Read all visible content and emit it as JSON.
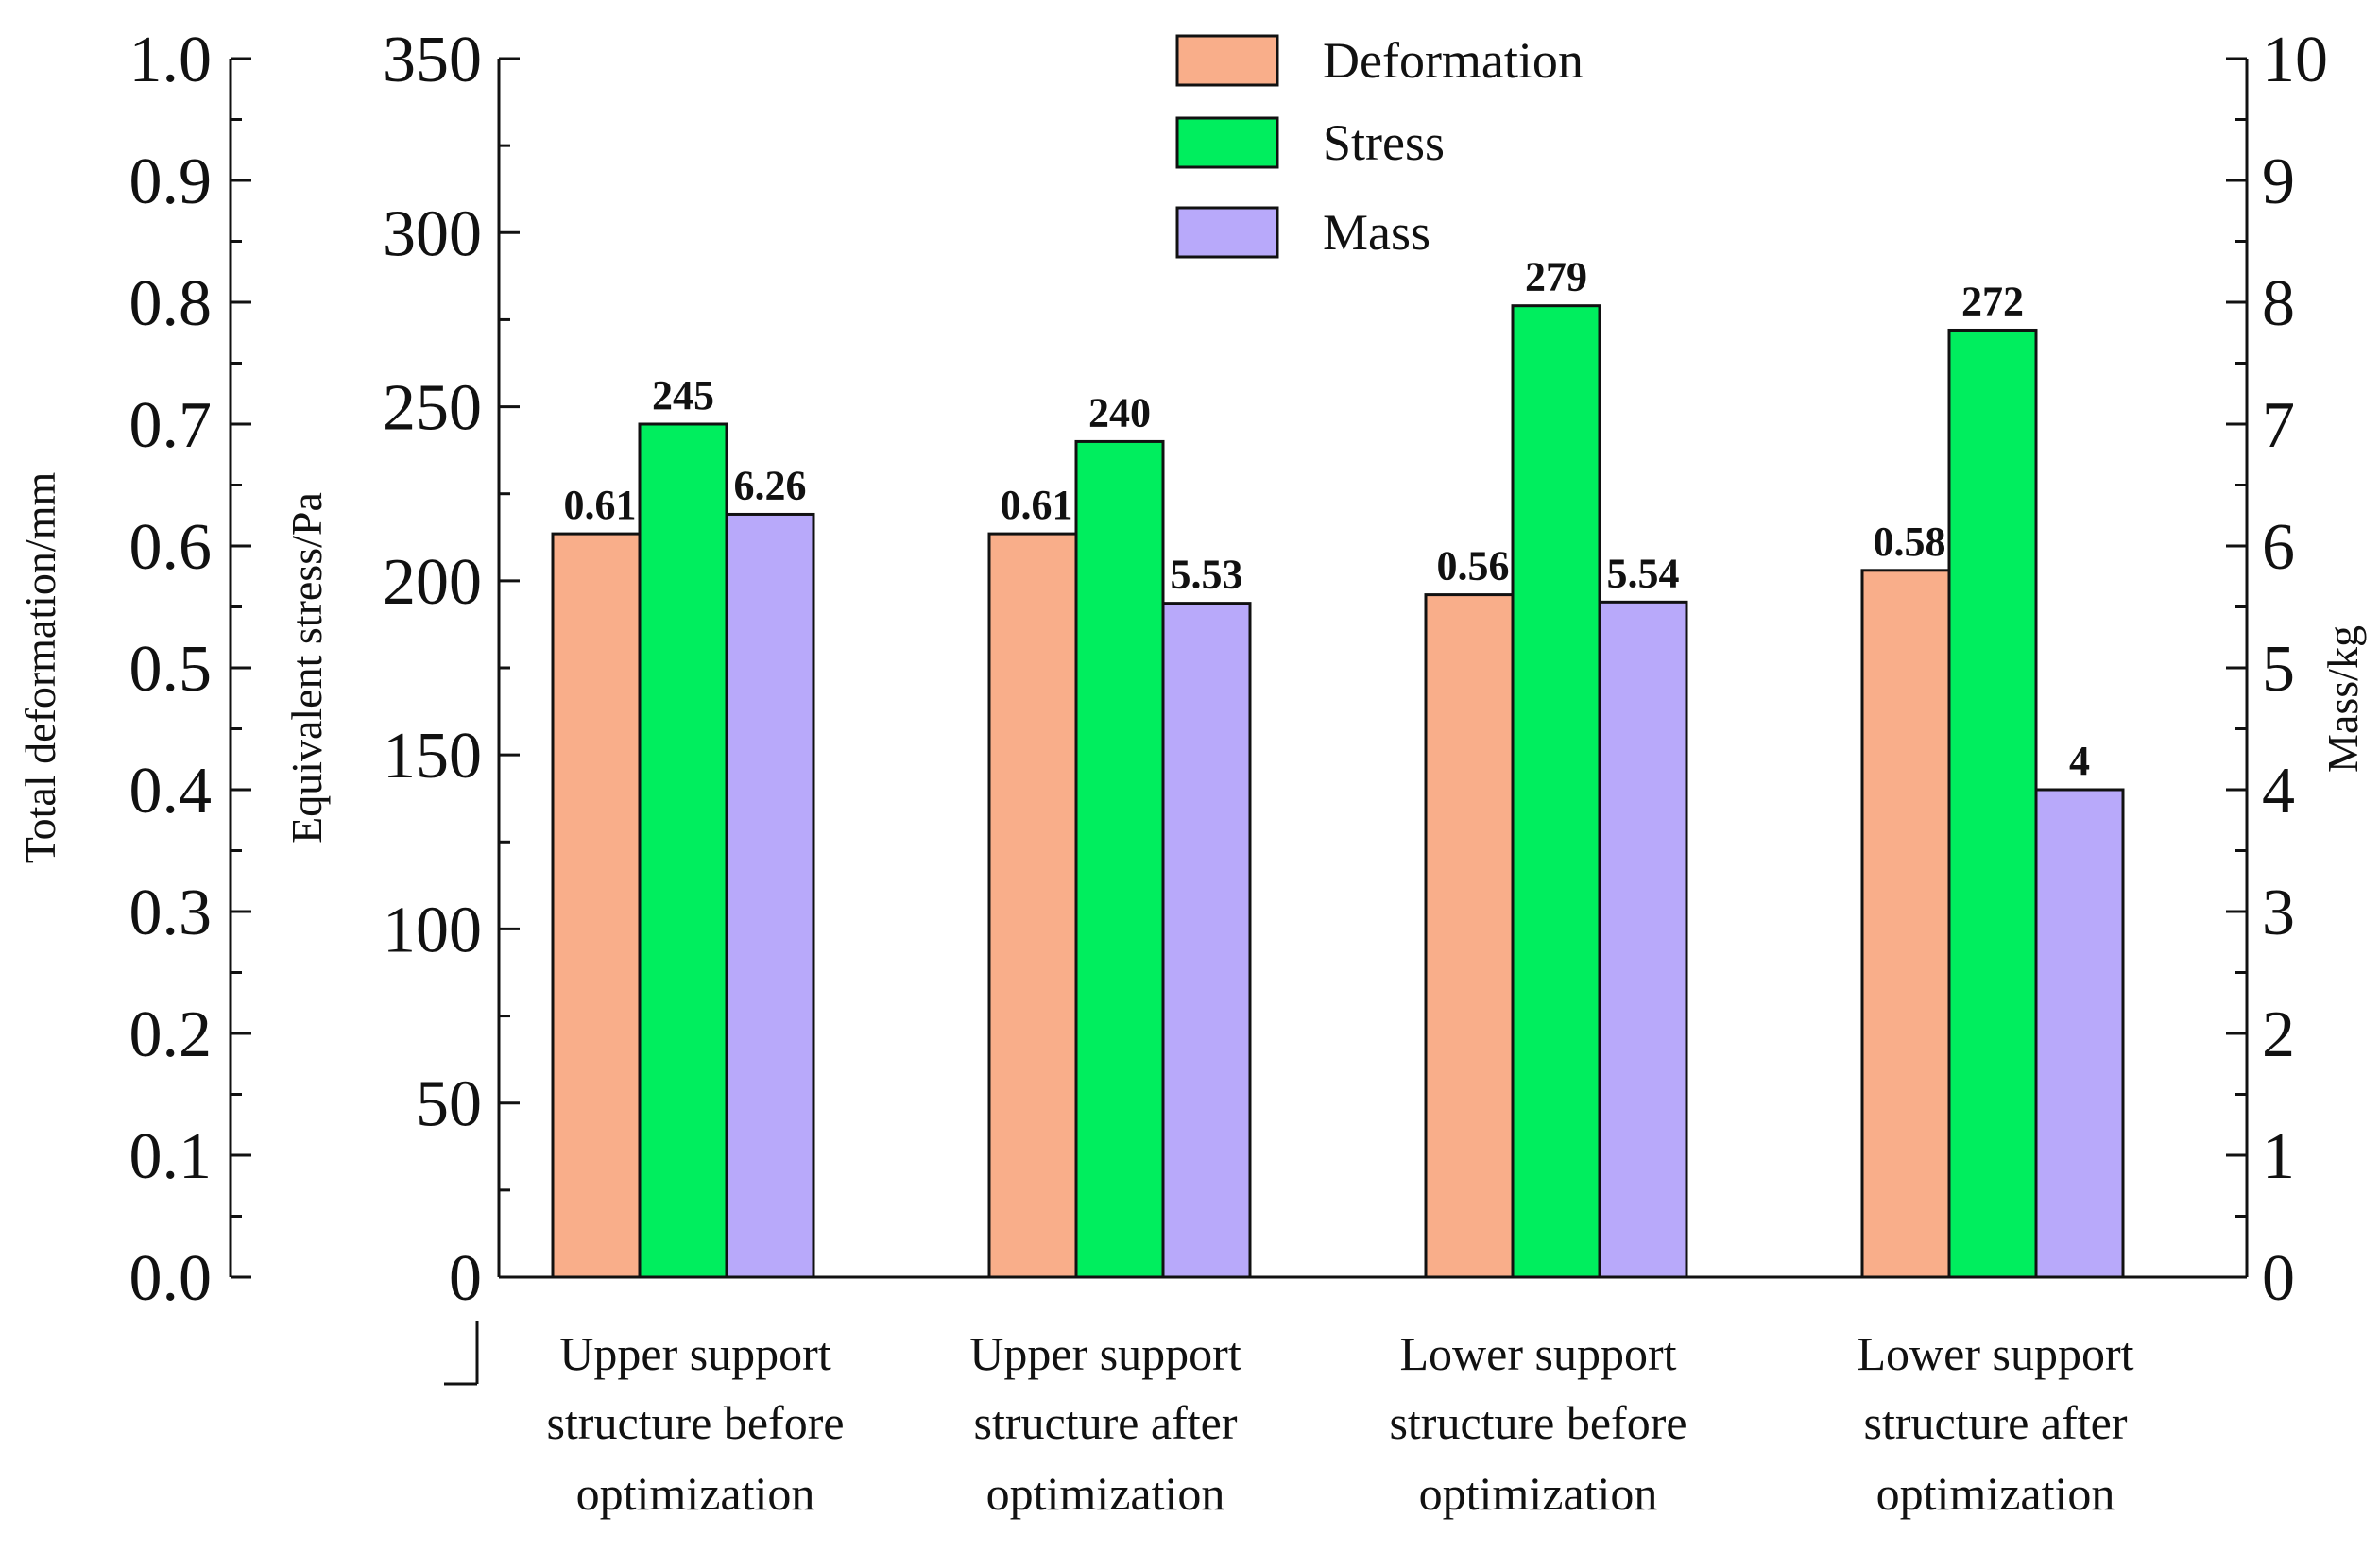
{
  "chart_data": {
    "type": "bar",
    "categories": [
      [
        "Upper support",
        "structure before",
        "optimization"
      ],
      [
        "Upper support",
        "structure after",
        "optimization"
      ],
      [
        "Lower support",
        "structure before",
        "optimization"
      ],
      [
        "Lower support",
        "structure after",
        "optimization"
      ]
    ],
    "series": [
      {
        "name": "Deformation",
        "axis": "deformation",
        "color": "#F9AE8A",
        "values": [
          0.61,
          0.61,
          0.56,
          0.58
        ],
        "labels": [
          "0.61",
          "0.61",
          "0.56",
          "0.58"
        ]
      },
      {
        "name": "Stress",
        "axis": "stress",
        "color": "#00EE5E",
        "values": [
          245,
          240,
          279,
          272
        ],
        "labels": [
          "245",
          "240",
          "279",
          "272"
        ]
      },
      {
        "name": "Mass",
        "axis": "mass",
        "color": "#B8A9FA",
        "values": [
          6.26,
          5.53,
          5.54,
          4
        ],
        "labels": [
          "6.26",
          "5.53",
          "5.54",
          "4"
        ]
      }
    ],
    "axes": {
      "deformation": {
        "title": "Total deformation/mm",
        "ylim": [
          0,
          1.0
        ],
        "ticks": [
          "0.0",
          "0.1",
          "0.2",
          "0.3",
          "0.4",
          "0.5",
          "0.6",
          "0.7",
          "0.8",
          "0.9",
          "1.0"
        ]
      },
      "stress": {
        "title": "Equivalent stress/Pa",
        "ylim": [
          0,
          350
        ],
        "ticks": [
          "0",
          "50",
          "100",
          "150",
          "200",
          "250",
          "300",
          "350"
        ]
      },
      "mass": {
        "title": "Mass/kg",
        "ylim": [
          0,
          10
        ],
        "ticks": [
          "0",
          "1",
          "2",
          "3",
          "4",
          "5",
          "6",
          "7",
          "8",
          "9",
          "10"
        ]
      }
    },
    "legend": {
      "position": "top-center",
      "entries": [
        "Deformation",
        "Stress",
        "Mass"
      ]
    }
  }
}
